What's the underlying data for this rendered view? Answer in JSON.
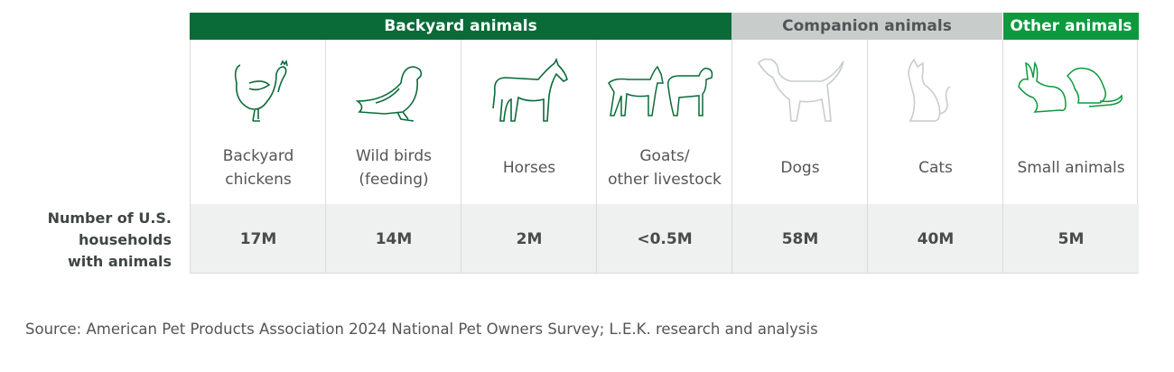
{
  "groups": {
    "backyard": "Backyard animals",
    "companion": "Companion animals",
    "other": "Other animals"
  },
  "row_label": "Number of U.S.\nhouseholds\nwith animals",
  "columns": [
    {
      "label": "Backyard\nchickens",
      "value": "17M",
      "icon": "chicken-icon"
    },
    {
      "label": "Wild birds\n(feeding)",
      "value": "14M",
      "icon": "bird-icon"
    },
    {
      "label": "Horses",
      "value": "2M",
      "icon": "horse-icon"
    },
    {
      "label": "Goats/\nother livestock",
      "value": "<0.5M",
      "icon": "goat-sheep-icon"
    },
    {
      "label": "Dogs",
      "value": "58M",
      "icon": "dog-icon"
    },
    {
      "label": "Cats",
      "value": "40M",
      "icon": "cat-icon"
    },
    {
      "label": "Small animals",
      "value": "5M",
      "icon": "rabbit-rat-icon"
    }
  ],
  "source": "Source: American Pet Products Association 2024 National Pet Owners Survey; L.E.K. research and analysis",
  "colors": {
    "backyard": "#0a6b38",
    "companion": "#c8cdcc",
    "other": "#0d9a3f"
  },
  "chart_data": {
    "type": "table",
    "title": "",
    "groups": [
      {
        "name": "Backyard animals",
        "categories": [
          "Backyard chickens",
          "Wild birds (feeding)",
          "Horses",
          "Goats/other livestock"
        ]
      },
      {
        "name": "Companion animals",
        "categories": [
          "Dogs",
          "Cats"
        ]
      },
      {
        "name": "Other animals",
        "categories": [
          "Small animals"
        ]
      }
    ],
    "row_header": "Number of U.S. households with animals",
    "categories": [
      "Backyard chickens",
      "Wild birds (feeding)",
      "Horses",
      "Goats/other livestock",
      "Dogs",
      "Cats",
      "Small animals"
    ],
    "values": [
      "17M",
      "14M",
      "2M",
      "<0.5M",
      "58M",
      "40M",
      "5M"
    ]
  }
}
